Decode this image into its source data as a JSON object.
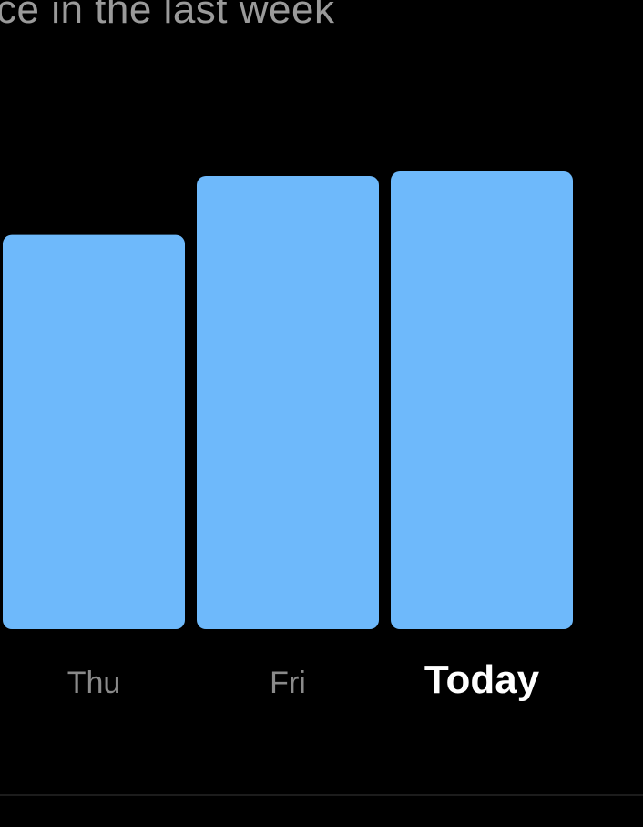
{
  "header": {
    "subtitle_visible_fragment": "ce in the last week"
  },
  "chart_data": {
    "type": "bar",
    "categories": [
      "Thu",
      "Fri",
      "Today"
    ],
    "values": [
      0.87,
      1.0,
      1.01
    ],
    "highlighted_category": "Today",
    "bar_color": "#6EB9FB",
    "label_color": "#8a8a8a",
    "highlight_label_color": "#FFFFFF",
    "background": "#000000"
  }
}
